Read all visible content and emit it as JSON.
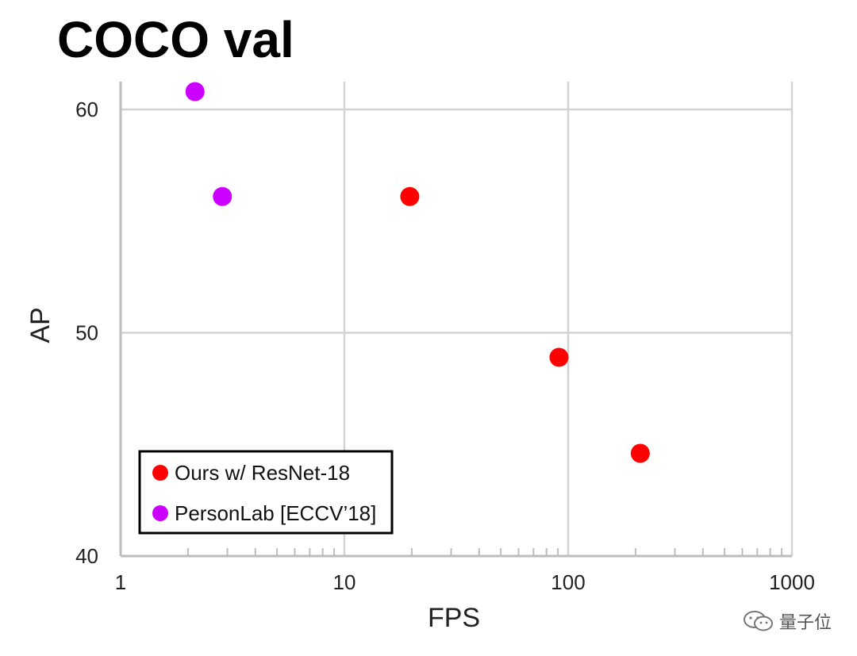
{
  "colors": {
    "ours": "#ff0000",
    "personlab": "#cc00ff",
    "grid": "#d3d3d3",
    "axis": "#bdbdbd",
    "text": "#222222"
  },
  "watermark": {
    "text": "量子位",
    "icon": "wechat-icon"
  },
  "chart_data": {
    "type": "scatter",
    "title": "COCO val",
    "xlabel": "FPS",
    "ylabel": "AP",
    "x_scale": "log",
    "xlim": [
      1,
      1000
    ],
    "ylim": [
      40,
      60
    ],
    "x_ticks": [
      "1",
      "10",
      "100",
      "1000"
    ],
    "y_ticks": [
      "40",
      "50",
      "60"
    ],
    "grid": true,
    "legend_position": "bottom-left",
    "series": [
      {
        "name": "Ours w/ ResNet-18",
        "color": "#ff0000",
        "points": [
          {
            "x": 19.6,
            "y": 56.1
          },
          {
            "x": 91,
            "y": 48.9
          },
          {
            "x": 210,
            "y": 44.6
          }
        ]
      },
      {
        "name": "PersonLab [ECCV’18]",
        "color": "#cc00ff",
        "points": [
          {
            "x": 2.15,
            "y": 60.8
          },
          {
            "x": 2.85,
            "y": 56.1
          }
        ]
      }
    ]
  }
}
